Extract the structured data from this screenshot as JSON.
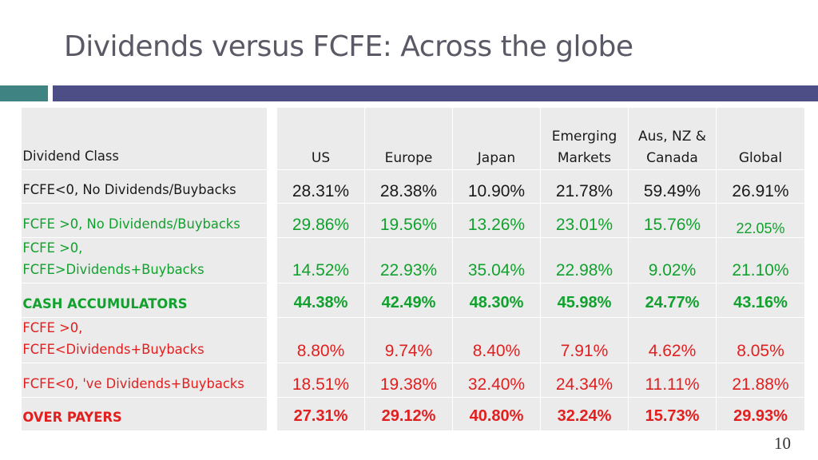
{
  "slide": {
    "title": "Dividends versus FCFE: Across the globe",
    "page_number": "10"
  },
  "table": {
    "header": {
      "dividend_class": "Dividend Class",
      "us": "US",
      "europe": "Europe",
      "japan": "Japan",
      "emerging_line1": "Emerging",
      "emerging_line2": "Markets",
      "aus_line1": "Aus, NZ &",
      "aus_line2": "Canada",
      "global": "Global"
    },
    "rows": [
      {
        "label": "FCFE<0, No Dividends/Buybacks",
        "values": [
          "28.31%",
          "28.38%",
          "10.90%",
          "21.78%",
          "59.49%",
          "26.91%"
        ]
      },
      {
        "label": "FCFE >0, No Dividends/Buybacks",
        "values": [
          "29.86%",
          "19.56%",
          "13.26%",
          "23.01%",
          "15.76%",
          "22.05%"
        ]
      },
      {
        "label_line1": "FCFE >0,",
        "label_line2": "FCFE>Dividends+Buybacks",
        "values": [
          "14.52%",
          "22.93%",
          "35.04%",
          "22.98%",
          "9.02%",
          "21.10%"
        ]
      },
      {
        "label": "CASH ACCUMULATORS",
        "values": [
          "44.38%",
          "42.49%",
          "48.30%",
          "45.98%",
          "24.77%",
          "43.16%"
        ]
      },
      {
        "label_line1": "FCFE >0,",
        "label_line2": "FCFE<Dividends+Buybacks",
        "values": [
          "8.80%",
          "9.74%",
          "8.40%",
          "7.91%",
          "4.62%",
          "8.05%"
        ]
      },
      {
        "label": "FCFE<0, 've Dividends+Buybacks",
        "values": [
          "18.51%",
          "19.38%",
          "32.40%",
          "24.34%",
          "11.11%",
          "21.88%"
        ]
      },
      {
        "label": "OVER PAYERS",
        "values": [
          "27.31%",
          "29.12%",
          "40.80%",
          "32.24%",
          "15.73%",
          "29.93%"
        ]
      }
    ]
  },
  "colors": {
    "green": "#12a12e",
    "red": "#e21f1f",
    "teal_bar": "#3f8482",
    "navy_bar": "#4d4e85",
    "cell_bg": "#ebebeb"
  }
}
